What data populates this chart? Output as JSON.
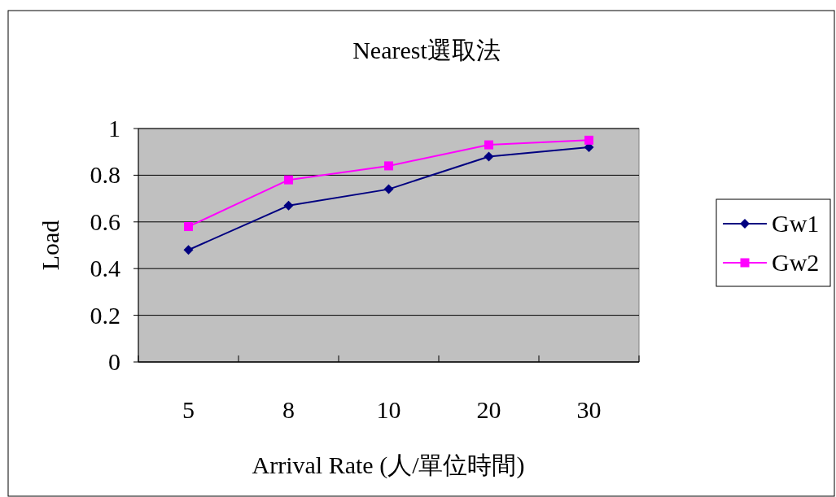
{
  "chart_data": {
    "type": "line",
    "title": "Nearest選取法",
    "xlabel": "Arrival Rate (人/單位時間)",
    "ylabel": "Load",
    "categories": [
      "5",
      "8",
      "10",
      "20",
      "30"
    ],
    "series": [
      {
        "name": "Gw1",
        "color": "#000080",
        "marker": "diamond",
        "values": [
          0.48,
          0.67,
          0.74,
          0.88,
          0.92
        ]
      },
      {
        "name": "Gw2",
        "color": "#ff00ff",
        "marker": "square",
        "values": [
          0.58,
          0.78,
          0.84,
          0.93,
          0.95
        ]
      }
    ],
    "ylim": [
      0,
      1
    ],
    "yticks": [
      0,
      0.2,
      0.4,
      0.6,
      0.8,
      1
    ],
    "grid": "y",
    "legend": "right"
  }
}
